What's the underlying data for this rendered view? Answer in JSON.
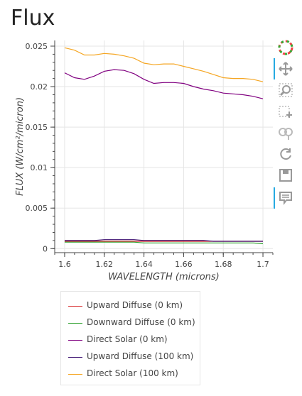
{
  "page": {
    "title": "Flux"
  },
  "toolbar": {
    "tools": [
      {
        "name": "bokeh-logo-icon",
        "interactable": true,
        "active": false
      },
      {
        "name": "pan-tool-icon",
        "interactable": true,
        "active": true
      },
      {
        "name": "box-zoom-tool-icon",
        "interactable": true,
        "active": false
      },
      {
        "name": "box-select-tool-icon",
        "interactable": true,
        "active": false
      },
      {
        "name": "lasso-tool-icon",
        "interactable": true,
        "active": false
      },
      {
        "name": "reset-tool-icon",
        "interactable": true,
        "active": false
      },
      {
        "name": "save-tool-icon",
        "interactable": true,
        "active": false
      },
      {
        "name": "hover-tool-icon",
        "interactable": true,
        "active": true
      }
    ]
  },
  "chart_data": {
    "type": "line",
    "title": "Flux",
    "xlabel": "WAVELENGTH (microns)",
    "ylabel": "FLUX (W/cm²/micron)",
    "xlim": [
      1.595,
      1.705
    ],
    "ylim": [
      -0.0005,
      0.0257
    ],
    "xticks": [
      1.6,
      1.62,
      1.64,
      1.66,
      1.68,
      1.7
    ],
    "xtick_labels": [
      "1.6",
      "1.62",
      "1.64",
      "1.66",
      "1.68",
      "1.7"
    ],
    "yticks": [
      0,
      0.005,
      0.01,
      0.015,
      0.02,
      0.025
    ],
    "ytick_labels": [
      "0",
      "0.005",
      "0.01",
      "0.015",
      "0.02",
      "0.025"
    ],
    "grid": true,
    "legend_position": "below",
    "x": [
      1.6,
      1.605,
      1.61,
      1.615,
      1.62,
      1.625,
      1.63,
      1.635,
      1.64,
      1.645,
      1.65,
      1.655,
      1.66,
      1.665,
      1.67,
      1.675,
      1.68,
      1.685,
      1.69,
      1.695,
      1.7
    ],
    "series": [
      {
        "name": "Upward Diffuse (0 km)",
        "color": "#d62728",
        "values": [
          0.0009,
          0.0009,
          0.0009,
          0.0009,
          0.0009,
          0.0009,
          0.0009,
          0.0009,
          0.0009,
          0.0009,
          0.0009,
          0.0009,
          0.0009,
          0.0009,
          0.0009,
          0.0009,
          0.0009,
          0.0009,
          0.0009,
          0.0009,
          0.0009
        ]
      },
      {
        "name": "Downward Diffuse (0 km)",
        "color": "#2ca02c",
        "values": [
          0.0008,
          0.0008,
          0.0008,
          0.0008,
          0.0008,
          0.0008,
          0.0008,
          0.0008,
          0.0007,
          0.0007,
          0.0007,
          0.0007,
          0.0007,
          0.0007,
          0.0007,
          0.0007,
          0.0007,
          0.0007,
          0.0007,
          0.0007,
          0.0006
        ]
      },
      {
        "name": "Direct Solar (0 km)",
        "color": "#800080",
        "values": [
          0.0217,
          0.0211,
          0.0209,
          0.0213,
          0.0219,
          0.0221,
          0.022,
          0.0216,
          0.0209,
          0.0204,
          0.0205,
          0.0205,
          0.0204,
          0.02,
          0.0197,
          0.0195,
          0.0192,
          0.0191,
          0.019,
          0.0188,
          0.0185
        ]
      },
      {
        "name": "Upward Diffuse (100 km)",
        "color": "#3b0f70",
        "values": [
          0.001,
          0.001,
          0.001,
          0.001,
          0.0011,
          0.0011,
          0.0011,
          0.0011,
          0.001,
          0.001,
          0.001,
          0.001,
          0.001,
          0.001,
          0.001,
          0.0009,
          0.0009,
          0.0009,
          0.0009,
          0.0009,
          0.0009
        ]
      },
      {
        "name": "Direct Solar (100 km)",
        "color": "#f5a623",
        "values": [
          0.0248,
          0.0245,
          0.0239,
          0.0239,
          0.0241,
          0.024,
          0.0238,
          0.0235,
          0.0229,
          0.0227,
          0.0228,
          0.0228,
          0.0225,
          0.0222,
          0.0219,
          0.0215,
          0.0211,
          0.021,
          0.021,
          0.0209,
          0.0206
        ]
      }
    ]
  }
}
